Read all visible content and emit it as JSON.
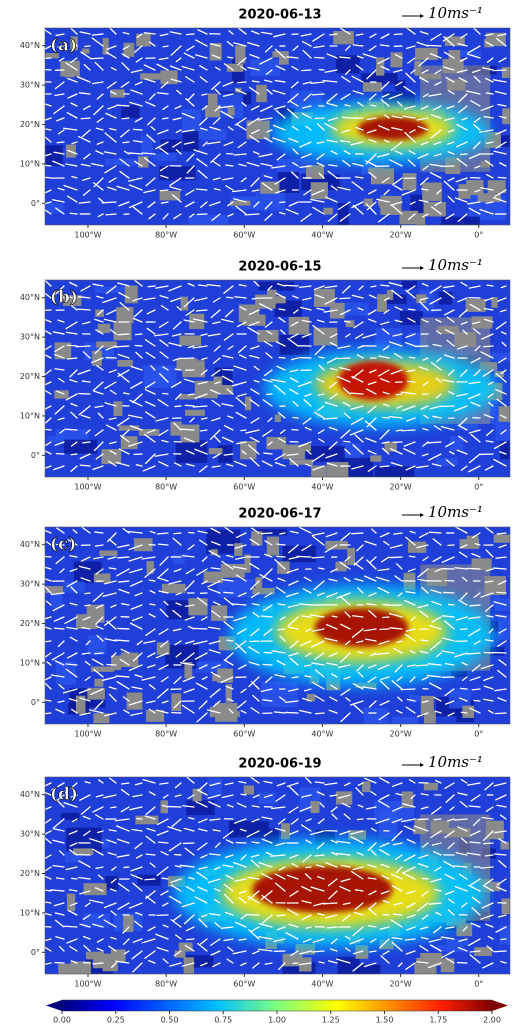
{
  "map": {
    "xlim": [
      -111,
      8
    ],
    "ylim": [
      -5.5,
      44.5
    ],
    "xticks": [
      {
        "value": -100,
        "label": "100°W"
      },
      {
        "value": -80,
        "label": "80°W"
      },
      {
        "value": -60,
        "label": "60°W"
      },
      {
        "value": -40,
        "label": "40°W"
      },
      {
        "value": -20,
        "label": "20°W"
      },
      {
        "value": 0,
        "label": "0°"
      }
    ],
    "yticks": [
      {
        "value": 0,
        "label": "0°"
      },
      {
        "value": 10,
        "label": "10°N"
      },
      {
        "value": 20,
        "label": "20°N"
      },
      {
        "value": 30,
        "label": "30°N"
      },
      {
        "value": 40,
        "label": "40°N"
      }
    ]
  },
  "panels": [
    {
      "label": "(a)",
      "title": "2020-06-13",
      "scale_label": "10ms⁻¹"
    },
    {
      "label": "(b)",
      "title": "2020-06-15",
      "scale_label": "10ms⁻¹"
    },
    {
      "label": "(c)",
      "title": "2020-06-17",
      "scale_label": "10ms⁻¹"
    },
    {
      "label": "(d)",
      "title": "2020-06-19",
      "scale_label": "10ms⁻¹"
    }
  ],
  "colorbar": {
    "range": [
      0,
      2
    ],
    "ticks": [
      {
        "value": 0,
        "label": "0.00"
      },
      {
        "value": 0.25,
        "label": "0.25"
      },
      {
        "value": 0.5,
        "label": "0.50"
      },
      {
        "value": 0.75,
        "label": "0.75"
      },
      {
        "value": 1,
        "label": "1.00"
      },
      {
        "value": 1.25,
        "label": "1.25"
      },
      {
        "value": 1.5,
        "label": "1.50"
      },
      {
        "value": 1.75,
        "label": "1.75"
      },
      {
        "value": 2,
        "label": "2.00"
      }
    ]
  }
}
